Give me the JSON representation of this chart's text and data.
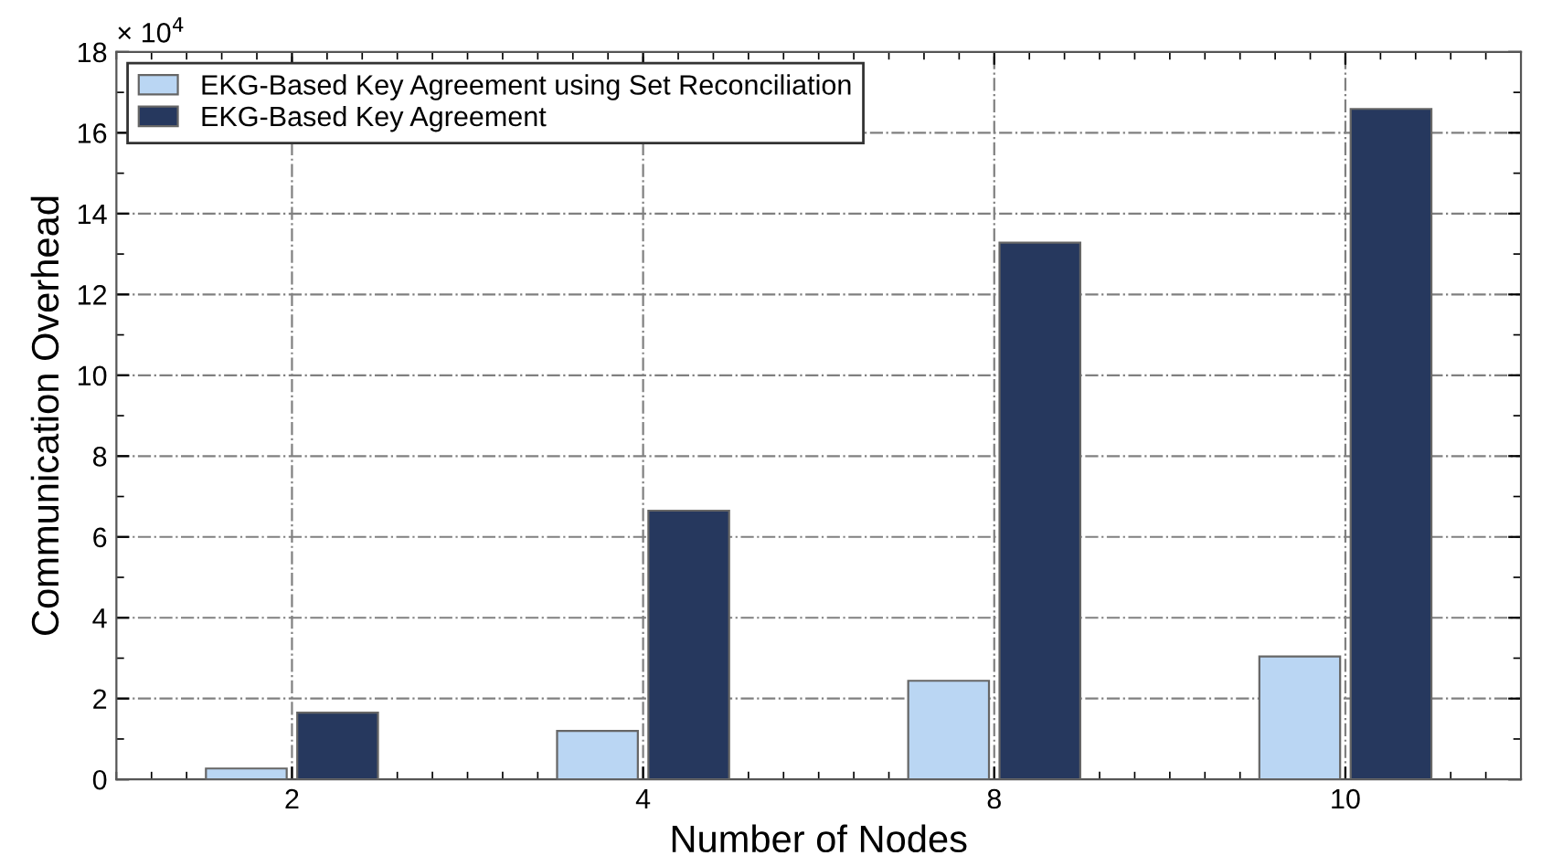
{
  "chart_data": {
    "type": "bar",
    "xlabel": "Number of Nodes",
    "ylabel": "Communication Overhead",
    "categories": [
      "2",
      "4",
      "8",
      "10"
    ],
    "series": [
      {
        "name": "EKG-Based Key Agreement using Set Reconciliation",
        "color": "#bad6f3",
        "values": [
          0.27,
          1.2,
          2.44,
          3.04
        ]
      },
      {
        "name": "EKG-Based Key Agreement",
        "color": "#26385e",
        "values": [
          1.65,
          6.65,
          13.28,
          16.59
        ]
      }
    ],
    "ylim": [
      0,
      18
    ],
    "yticks": [
      0,
      2,
      4,
      6,
      8,
      10,
      12,
      14,
      16,
      18
    ],
    "annotations": [
      "× 10$^{4}$"
    ],
    "grid": true,
    "legend": "top left",
    "line_style": "dashdot"
  }
}
